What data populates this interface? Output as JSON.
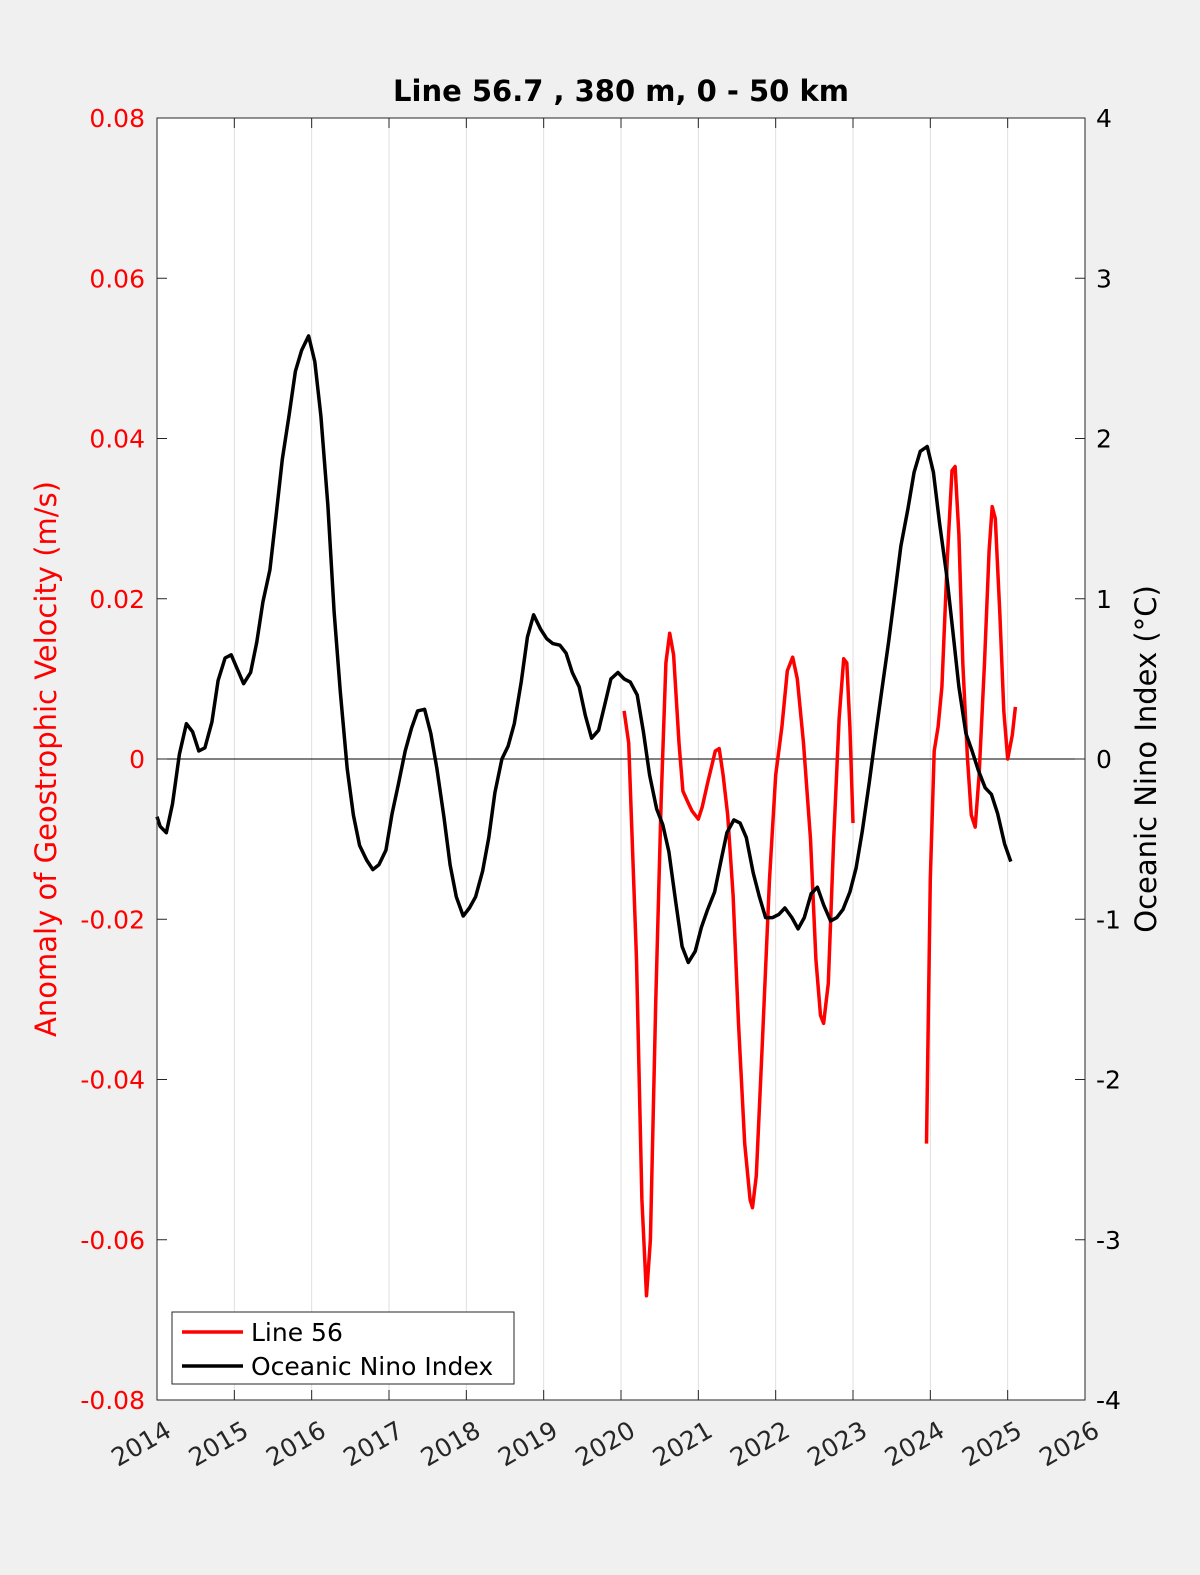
{
  "chart_data": {
    "type": "line",
    "title": "Line 56.7 , 380 m, 0 - 50 km",
    "xlabel": "",
    "ylabel_left": "Anomaly of Geostrophic Velocity (m/s)",
    "ylabel_right": "Oceanic Nino Index (°C)",
    "xlim": [
      2014,
      2026
    ],
    "ylim_left": [
      -0.08,
      0.08
    ],
    "ylim_right": [
      -4,
      4
    ],
    "x_ticks": [
      "2014",
      "2015",
      "2016",
      "2017",
      "2018",
      "2019",
      "2020",
      "2021",
      "2022",
      "2023",
      "2024",
      "2025",
      "2026"
    ],
    "y_ticks_left": [
      "-0.08",
      "-0.06",
      "-0.04",
      "-0.02",
      "0",
      "0.02",
      "0.04",
      "0.06",
      "0.08"
    ],
    "y_ticks_right": [
      "-4",
      "-3",
      "-2",
      "-1",
      "0",
      "1",
      "2",
      "3",
      "4"
    ],
    "grid": "vertical",
    "legend_position": "bottom-left",
    "colors": {
      "line56": "#ff0000",
      "oni": "#000000",
      "left_axis": "#ff0000",
      "right_axis": "#000000"
    },
    "series": [
      {
        "name": "Line 56",
        "axis": "left",
        "segments": [
          [
            [
              2020.04,
              0.006
            ],
            [
              2020.1,
              0.002
            ],
            [
              2020.2,
              -0.025
            ],
            [
              2020.27,
              -0.055
            ],
            [
              2020.33,
              -0.067
            ],
            [
              2020.38,
              -0.06
            ],
            [
              2020.45,
              -0.03
            ],
            [
              2020.52,
              -0.005
            ],
            [
              2020.58,
              0.012
            ],
            [
              2020.63,
              0.0157
            ],
            [
              2020.68,
              0.013
            ],
            [
              2020.75,
              0.002
            ],
            [
              2020.8,
              -0.004
            ],
            [
              2020.87,
              -0.0055
            ],
            [
              2020.92,
              -0.0065
            ],
            [
              2021.0,
              -0.0075
            ],
            [
              2021.05,
              -0.006
            ],
            [
              2021.12,
              -0.003
            ],
            [
              2021.22,
              0.001
            ],
            [
              2021.27,
              0.0013
            ],
            [
              2021.32,
              -0.002
            ],
            [
              2021.38,
              -0.007
            ],
            [
              2021.45,
              -0.017
            ],
            [
              2021.52,
              -0.033
            ],
            [
              2021.6,
              -0.048
            ],
            [
              2021.67,
              -0.055
            ],
            [
              2021.7,
              -0.056
            ],
            [
              2021.75,
              -0.052
            ],
            [
              2021.83,
              -0.035
            ],
            [
              2021.92,
              -0.015
            ],
            [
              2022.0,
              -0.002
            ],
            [
              2022.08,
              0.004
            ],
            [
              2022.15,
              0.011
            ],
            [
              2022.22,
              0.0127
            ],
            [
              2022.28,
              0.01
            ],
            [
              2022.36,
              0.002
            ],
            [
              2022.45,
              -0.01
            ],
            [
              2022.52,
              -0.025
            ],
            [
              2022.58,
              -0.032
            ],
            [
              2022.62,
              -0.033
            ],
            [
              2022.68,
              -0.028
            ],
            [
              2022.75,
              -0.01
            ],
            [
              2022.82,
              0.005
            ],
            [
              2022.88,
              0.0125
            ],
            [
              2022.92,
              0.012
            ],
            [
              2022.96,
              0.004
            ],
            [
              2023.0,
              -0.008
            ]
          ],
          [
            [
              2023.95,
              -0.048
            ],
            [
              2024.0,
              -0.015
            ],
            [
              2024.05,
              0.001
            ],
            [
              2024.1,
              0.004
            ],
            [
              2024.15,
              0.009
            ],
            [
              2024.22,
              0.025
            ],
            [
              2024.28,
              0.036
            ],
            [
              2024.32,
              0.0365
            ],
            [
              2024.37,
              0.028
            ],
            [
              2024.42,
              0.012
            ],
            [
              2024.48,
              0.0
            ],
            [
              2024.53,
              -0.007
            ],
            [
              2024.58,
              -0.0085
            ],
            [
              2024.63,
              -0.002
            ],
            [
              2024.7,
              0.012
            ],
            [
              2024.76,
              0.026
            ],
            [
              2024.8,
              0.0315
            ],
            [
              2024.84,
              0.03
            ],
            [
              2024.9,
              0.018
            ],
            [
              2024.95,
              0.006
            ],
            [
              2025.0,
              0.0
            ],
            [
              2025.06,
              0.003
            ],
            [
              2025.1,
              0.0065
            ]
          ]
        ]
      },
      {
        "name": "Oceanic Nino Index",
        "axis": "right",
        "points": [
          [
            2014.0,
            -0.36
          ],
          [
            2014.04,
            -0.42
          ],
          [
            2014.12,
            -0.46
          ],
          [
            2014.2,
            -0.28
          ],
          [
            2014.29,
            0.03
          ],
          [
            2014.38,
            0.22
          ],
          [
            2014.46,
            0.17
          ],
          [
            2014.54,
            0.05
          ],
          [
            2014.62,
            0.07
          ],
          [
            2014.71,
            0.23
          ],
          [
            2014.79,
            0.49
          ],
          [
            2014.88,
            0.63
          ],
          [
            2014.96,
            0.65
          ],
          [
            2015.04,
            0.56
          ],
          [
            2015.12,
            0.47
          ],
          [
            2015.21,
            0.54
          ],
          [
            2015.29,
            0.73
          ],
          [
            2015.37,
            0.98
          ],
          [
            2015.46,
            1.18
          ],
          [
            2015.54,
            1.52
          ],
          [
            2015.62,
            1.87
          ],
          [
            2015.71,
            2.15
          ],
          [
            2015.79,
            2.42
          ],
          [
            2015.87,
            2.55
          ],
          [
            2015.96,
            2.64
          ],
          [
            2016.04,
            2.48
          ],
          [
            2016.12,
            2.14
          ],
          [
            2016.21,
            1.58
          ],
          [
            2016.29,
            0.92
          ],
          [
            2016.37,
            0.42
          ],
          [
            2016.46,
            -0.06
          ],
          [
            2016.54,
            -0.35
          ],
          [
            2016.62,
            -0.54
          ],
          [
            2016.71,
            -0.63
          ],
          [
            2016.79,
            -0.69
          ],
          [
            2016.87,
            -0.66
          ],
          [
            2016.96,
            -0.57
          ],
          [
            2017.04,
            -0.34
          ],
          [
            2017.12,
            -0.16
          ],
          [
            2017.21,
            0.05
          ],
          [
            2017.29,
            0.19
          ],
          [
            2017.37,
            0.3
          ],
          [
            2017.46,
            0.31
          ],
          [
            2017.54,
            0.16
          ],
          [
            2017.62,
            -0.06
          ],
          [
            2017.71,
            -0.36
          ],
          [
            2017.79,
            -0.66
          ],
          [
            2017.87,
            -0.86
          ],
          [
            2017.96,
            -0.98
          ],
          [
            2018.04,
            -0.93
          ],
          [
            2018.12,
            -0.86
          ],
          [
            2018.21,
            -0.7
          ],
          [
            2018.29,
            -0.49
          ],
          [
            2018.37,
            -0.21
          ],
          [
            2018.46,
            0.0
          ],
          [
            2018.54,
            0.08
          ],
          [
            2018.62,
            0.22
          ],
          [
            2018.71,
            0.48
          ],
          [
            2018.79,
            0.76
          ],
          [
            2018.87,
            0.9
          ],
          [
            2018.96,
            0.81
          ],
          [
            2019.04,
            0.75
          ],
          [
            2019.12,
            0.72
          ],
          [
            2019.21,
            0.71
          ],
          [
            2019.29,
            0.66
          ],
          [
            2019.37,
            0.54
          ],
          [
            2019.46,
            0.45
          ],
          [
            2019.54,
            0.27
          ],
          [
            2019.62,
            0.13
          ],
          [
            2019.71,
            0.18
          ],
          [
            2019.79,
            0.34
          ],
          [
            2019.87,
            0.5
          ],
          [
            2019.96,
            0.54
          ],
          [
            2020.04,
            0.5
          ],
          [
            2020.12,
            0.48
          ],
          [
            2020.21,
            0.4
          ],
          [
            2020.29,
            0.17
          ],
          [
            2020.37,
            -0.1
          ],
          [
            2020.46,
            -0.31
          ],
          [
            2020.54,
            -0.41
          ],
          [
            2020.62,
            -0.58
          ],
          [
            2020.71,
            -0.9
          ],
          [
            2020.79,
            -1.17
          ],
          [
            2020.87,
            -1.27
          ],
          [
            2020.96,
            -1.2
          ],
          [
            2021.04,
            -1.05
          ],
          [
            2021.12,
            -0.94
          ],
          [
            2021.21,
            -0.83
          ],
          [
            2021.29,
            -0.64
          ],
          [
            2021.37,
            -0.46
          ],
          [
            2021.46,
            -0.38
          ],
          [
            2021.54,
            -0.4
          ],
          [
            2021.62,
            -0.49
          ],
          [
            2021.71,
            -0.71
          ],
          [
            2021.79,
            -0.86
          ],
          [
            2021.87,
            -0.99
          ],
          [
            2021.96,
            -0.99
          ],
          [
            2022.04,
            -0.97
          ],
          [
            2022.12,
            -0.93
          ],
          [
            2022.21,
            -0.99
          ],
          [
            2022.29,
            -1.06
          ],
          [
            2022.37,
            -0.99
          ],
          [
            2022.46,
            -0.84
          ],
          [
            2022.54,
            -0.8
          ],
          [
            2022.62,
            -0.91
          ],
          [
            2022.71,
            -1.01
          ],
          [
            2022.79,
            -0.99
          ],
          [
            2022.87,
            -0.94
          ],
          [
            2022.96,
            -0.83
          ],
          [
            2023.04,
            -0.68
          ],
          [
            2023.12,
            -0.45
          ],
          [
            2023.21,
            -0.15
          ],
          [
            2023.29,
            0.14
          ],
          [
            2023.37,
            0.42
          ],
          [
            2023.46,
            0.73
          ],
          [
            2023.54,
            1.03
          ],
          [
            2023.62,
            1.33
          ],
          [
            2023.71,
            1.56
          ],
          [
            2023.79,
            1.79
          ],
          [
            2023.87,
            1.92
          ],
          [
            2023.96,
            1.95
          ],
          [
            2024.04,
            1.79
          ],
          [
            2024.12,
            1.47
          ],
          [
            2024.21,
            1.15
          ],
          [
            2024.29,
            0.8
          ],
          [
            2024.37,
            0.45
          ],
          [
            2024.46,
            0.16
          ],
          [
            2024.54,
            0.05
          ],
          [
            2024.62,
            -0.07
          ],
          [
            2024.71,
            -0.18
          ],
          [
            2024.79,
            -0.22
          ],
          [
            2024.87,
            -0.34
          ],
          [
            2024.96,
            -0.53
          ],
          [
            2025.04,
            -0.64
          ]
        ]
      }
    ]
  }
}
